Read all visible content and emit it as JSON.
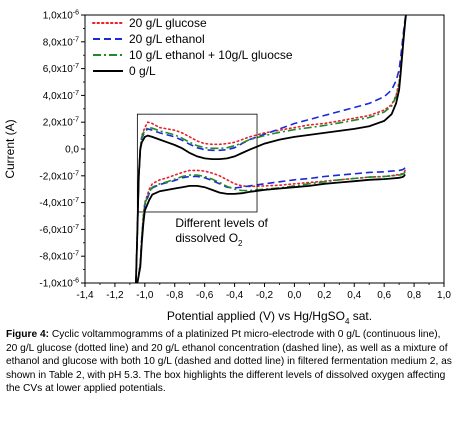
{
  "chart_data": {
    "type": "line",
    "xlabel": "Potential applied (V) vs Hg/HgSO",
    "xlabel_sub": "4",
    "xlabel_suffix": " sat.",
    "ylabel": "Current (A)",
    "xlim": [
      -1.4,
      1.0
    ],
    "ylim": [
      -1e-06,
      1e-06
    ],
    "x_ticks": [
      -1.4,
      -1.2,
      -1.0,
      -0.8,
      -0.6,
      -0.4,
      -0.2,
      0.0,
      0.2,
      0.4,
      0.6,
      0.8,
      1.0
    ],
    "x_tick_labels": [
      "-1,4",
      "-1,2",
      "-1,0",
      "-0,8",
      "-0,6",
      "-0,4",
      "-0,2",
      "0,0",
      "0,2",
      "0,4",
      "0,6",
      "0,8",
      "1,0"
    ],
    "y_ticks": [
      -1e-06,
      -8e-07,
      -6e-07,
      -4e-07,
      -2e-07,
      0.0,
      2e-07,
      4e-07,
      6e-07,
      8e-07,
      1e-06
    ],
    "y_tick_labels": [
      "-1,0x10",
      "-8,0x10",
      "-6,0x10",
      "-4,0x10",
      "-2,0x10",
      "0,0",
      "2,0x10",
      "4,0x10",
      "6,0x10",
      "8,0x10",
      "1,0x10"
    ],
    "y_tick_exponents": [
      "-6",
      "-7",
      "-7",
      "-7",
      "-7",
      "",
      "-7",
      "-7",
      "-7",
      "-7",
      "-6"
    ],
    "grid": false,
    "legend_position": "top-left",
    "series": [
      {
        "name": "20 g/L glucose",
        "color": "#e8202a",
        "dash": "dotted",
        "x": [
          -1.06,
          -1.05,
          -1.04,
          -1.03,
          -1.02,
          -1.0,
          -0.98,
          -0.95,
          -0.9,
          -0.85,
          -0.8,
          -0.75,
          -0.7,
          -0.65,
          -0.6,
          -0.55,
          -0.5,
          -0.45,
          -0.4,
          -0.35,
          -0.3,
          -0.2,
          -0.1,
          0.0,
          0.1,
          0.2,
          0.3,
          0.4,
          0.5,
          0.6,
          0.65,
          0.68,
          0.7,
          0.71,
          0.72,
          0.73,
          0.74,
          0.745,
          null,
          0.74,
          0.73,
          0.72,
          0.7,
          0.65,
          0.6,
          0.5,
          0.4,
          0.3,
          0.2,
          0.1,
          0.0,
          -0.1,
          -0.2,
          -0.3,
          -0.35,
          -0.4,
          -0.45,
          -0.5,
          -0.55,
          -0.6,
          -0.65,
          -0.7,
          -0.75,
          -0.8,
          -0.85,
          -0.9,
          -0.95,
          -0.97,
          -1.0,
          -1.01,
          -1.02,
          -1.03,
          -1.05
        ],
        "y": [
          -1e-06,
          -6e-07,
          -2e-07,
          0.0,
          1e-07,
          1.6e-07,
          2e-07,
          1.9e-07,
          1.6e-07,
          1.5e-07,
          1.4e-07,
          1.2e-07,
          9e-08,
          6e-08,
          4e-08,
          3.5e-08,
          3.5e-08,
          4e-08,
          5e-08,
          7e-08,
          9e-08,
          1.2e-07,
          1.4e-07,
          1.6e-07,
          1.8e-07,
          1.9e-07,
          2.1e-07,
          2.3e-07,
          2.5e-07,
          2.9e-07,
          3.3e-07,
          4e-07,
          5e-07,
          6e-07,
          7.3e-07,
          8.5e-07,
          9.6e-07,
          1e-06,
          null,
          -1.6e-07,
          -1.8e-07,
          -1.85e-07,
          -1.9e-07,
          -2e-07,
          -2.05e-07,
          -2.1e-07,
          -2.2e-07,
          -2.3e-07,
          -2.4e-07,
          -2.5e-07,
          -2.6e-07,
          -2.7e-07,
          -2.75e-07,
          -2.8e-07,
          -2.75e-07,
          -2.6e-07,
          -2.3e-07,
          -2e-07,
          -1.8e-07,
          -1.65e-07,
          -1.6e-07,
          -1.6e-07,
          -1.75e-07,
          -1.95e-07,
          -2.15e-07,
          -2.3e-07,
          -2.6e-07,
          -3e-07,
          -4e-07,
          -5e-07,
          -6.5e-07,
          -8.5e-07,
          -1e-06
        ]
      },
      {
        "name": "20 g/L ethanol",
        "color": "#1a2ad8",
        "dash": "dashed",
        "x": [
          -1.06,
          -1.05,
          -1.04,
          -1.03,
          -1.02,
          -1.0,
          -0.98,
          -0.95,
          -0.9,
          -0.85,
          -0.8,
          -0.75,
          -0.7,
          -0.65,
          -0.6,
          -0.55,
          -0.5,
          -0.45,
          -0.4,
          -0.35,
          -0.3,
          -0.2,
          -0.1,
          0.0,
          0.1,
          0.2,
          0.3,
          0.4,
          0.5,
          0.6,
          0.65,
          0.68,
          0.7,
          0.71,
          0.72,
          0.73,
          0.74,
          0.745,
          null,
          0.74,
          0.73,
          0.72,
          0.7,
          0.65,
          0.6,
          0.5,
          0.4,
          0.3,
          0.2,
          0.1,
          0.0,
          -0.1,
          -0.2,
          -0.3,
          -0.35,
          -0.4,
          -0.45,
          -0.5,
          -0.55,
          -0.6,
          -0.65,
          -0.7,
          -0.75,
          -0.8,
          -0.85,
          -0.9,
          -0.95,
          -0.97,
          -1.0,
          -1.01,
          -1.02,
          -1.03,
          -1.05
        ],
        "y": [
          -1e-06,
          -6e-07,
          -2e-07,
          0.0,
          8e-08,
          1.3e-07,
          1.5e-07,
          1.4e-07,
          1.2e-07,
          1.05e-07,
          9e-08,
          6.5e-08,
          3.5e-08,
          1e-08,
          -5e-09,
          -1e-08,
          -1e-08,
          -5e-09,
          1e-08,
          4e-08,
          7e-08,
          1.1e-07,
          1.5e-07,
          1.9e-07,
          2.2e-07,
          2.5e-07,
          2.8e-07,
          3.1e-07,
          3.4e-07,
          3.9e-07,
          4.4e-07,
          5.1e-07,
          5.9e-07,
          6.8e-07,
          7.8e-07,
          8.8e-07,
          9.7e-07,
          1e-06,
          null,
          -1.4e-07,
          -1.5e-07,
          -1.55e-07,
          -1.6e-07,
          -1.65e-07,
          -1.7e-07,
          -1.75e-07,
          -1.85e-07,
          -1.95e-07,
          -2.05e-07,
          -2.2e-07,
          -2.3e-07,
          -2.45e-07,
          -2.6e-07,
          -2.75e-07,
          -2.85e-07,
          -2.9e-07,
          -2.85e-07,
          -2.6e-07,
          -2.35e-07,
          -2.15e-07,
          -2.05e-07,
          -2.05e-07,
          -2.15e-07,
          -2.35e-07,
          -2.5e-07,
          -2.65e-07,
          -2.9e-07,
          -3.3e-07,
          -4.2e-07,
          -5.2e-07,
          -6.6e-07,
          -8.6e-07,
          -1e-06
        ]
      },
      {
        "name": "10 g/L ethanol + 10g/L gluocse",
        "color": "#1f8a2a",
        "dash": "dashdot",
        "x": [
          -1.06,
          -1.05,
          -1.04,
          -1.03,
          -1.02,
          -1.0,
          -0.98,
          -0.95,
          -0.9,
          -0.85,
          -0.8,
          -0.75,
          -0.7,
          -0.65,
          -0.6,
          -0.55,
          -0.5,
          -0.45,
          -0.4,
          -0.35,
          -0.3,
          -0.2,
          -0.1,
          0.0,
          0.1,
          0.2,
          0.3,
          0.4,
          0.5,
          0.6,
          0.65,
          0.68,
          0.7,
          0.71,
          0.72,
          0.73,
          0.74,
          0.745,
          null,
          0.74,
          0.73,
          0.72,
          0.7,
          0.65,
          0.6,
          0.5,
          0.4,
          0.3,
          0.2,
          0.1,
          0.0,
          -0.1,
          -0.2,
          -0.3,
          -0.35,
          -0.4,
          -0.45,
          -0.5,
          -0.55,
          -0.6,
          -0.65,
          -0.7,
          -0.75,
          -0.8,
          -0.85,
          -0.9,
          -0.95,
          -0.97,
          -1.0,
          -1.01,
          -1.02,
          -1.03,
          -1.05
        ],
        "y": [
          -1e-06,
          -6e-07,
          -2e-07,
          0.0,
          9e-08,
          1.4e-07,
          1.6e-07,
          1.55e-07,
          1.35e-07,
          1.2e-07,
          1.05e-07,
          8e-08,
          5e-08,
          2.5e-08,
          1e-08,
          5e-09,
          5e-09,
          1e-08,
          2.5e-08,
          4.5e-08,
          7e-08,
          1e-07,
          1.25e-07,
          1.45e-07,
          1.6e-07,
          1.75e-07,
          1.95e-07,
          2.15e-07,
          2.35e-07,
          2.75e-07,
          3.2e-07,
          3.9e-07,
          4.8e-07,
          5.8e-07,
          7e-07,
          8.3e-07,
          9.5e-07,
          1e-06,
          null,
          -1.7e-07,
          -1.85e-07,
          -1.9e-07,
          -1.95e-07,
          -2e-07,
          -2.05e-07,
          -2.1e-07,
          -2.2e-07,
          -2.3e-07,
          -2.45e-07,
          -2.6e-07,
          -2.75e-07,
          -2.9e-07,
          -3e-07,
          -3.1e-07,
          -3.1e-07,
          -3e-07,
          -2.8e-07,
          -2.5e-07,
          -2.25e-07,
          -2.05e-07,
          -1.95e-07,
          -1.95e-07,
          -2.05e-07,
          -2.25e-07,
          -2.45e-07,
          -2.6e-07,
          -2.85e-07,
          -3.2e-07,
          -4.1e-07,
          -5.1e-07,
          -6.6e-07,
          -8.6e-07,
          -1e-06
        ]
      },
      {
        "name": "0 g/L",
        "color": "#000000",
        "dash": "solid",
        "x": [
          -1.06,
          -1.05,
          -1.04,
          -1.03,
          -1.02,
          -1.0,
          -0.98,
          -0.95,
          -0.9,
          -0.85,
          -0.8,
          -0.75,
          -0.7,
          -0.65,
          -0.6,
          -0.55,
          -0.5,
          -0.45,
          -0.4,
          -0.35,
          -0.3,
          -0.2,
          -0.1,
          0.0,
          0.1,
          0.2,
          0.3,
          0.4,
          0.5,
          0.6,
          0.65,
          0.68,
          0.7,
          0.71,
          0.72,
          0.73,
          0.74,
          0.745,
          null,
          0.74,
          0.73,
          0.72,
          0.7,
          0.65,
          0.6,
          0.5,
          0.4,
          0.3,
          0.2,
          0.1,
          0.0,
          -0.1,
          -0.2,
          -0.3,
          -0.35,
          -0.4,
          -0.45,
          -0.5,
          -0.55,
          -0.6,
          -0.65,
          -0.7,
          -0.75,
          -0.8,
          -0.85,
          -0.9,
          -0.95,
          -0.97,
          -1.0,
          -1.01,
          -1.02,
          -1.03,
          -1.05
        ],
        "y": [
          -1e-06,
          -6e-07,
          -2e-07,
          0.0,
          5e-08,
          9e-08,
          1e-07,
          9e-08,
          7e-08,
          5e-08,
          3e-08,
          5e-09,
          -3e-08,
          -5.5e-08,
          -7e-08,
          -7.5e-08,
          -7.5e-08,
          -7e-08,
          -5.5e-08,
          -3e-08,
          -5e-09,
          4e-08,
          7e-08,
          9e-08,
          1.05e-07,
          1.2e-07,
          1.35e-07,
          1.5e-07,
          1.7e-07,
          2.1e-07,
          2.6e-07,
          3.4e-07,
          4.4e-07,
          5.6e-07,
          6.9e-07,
          8.2e-07,
          9.4e-07,
          1e-06,
          null,
          -1.9e-07,
          -2.05e-07,
          -2.1e-07,
          -2.15e-07,
          -2.2e-07,
          -2.25e-07,
          -2.3e-07,
          -2.4e-07,
          -2.5e-07,
          -2.6e-07,
          -2.75e-07,
          -2.85e-07,
          -2.95e-07,
          -3.05e-07,
          -3.2e-07,
          -3.3e-07,
          -3.35e-07,
          -3.35e-07,
          -3.25e-07,
          -3.05e-07,
          -2.85e-07,
          -2.75e-07,
          -2.75e-07,
          -2.85e-07,
          -2.95e-07,
          -3.05e-07,
          -3.15e-07,
          -3.4e-07,
          -3.8e-07,
          -4.6e-07,
          -5.6e-07,
          -7e-07,
          -8.8e-07,
          -1e-06
        ]
      }
    ],
    "highlight_box": {
      "x0": -1.05,
      "x1": -0.25,
      "y0": -4.7e-07,
      "y1": 2.6e-07
    },
    "annotation": {
      "text": "Different levels of",
      "text2": "dissolved O",
      "sub": "2"
    }
  },
  "caption": {
    "label": "Figure 4:",
    "text": "Cyclic voltammogramms of a platinized Pt micro-electrode with 0 g/L (continuous line), 20 g/L glucose (dotted line) and 20 g/L ethanol concentration (dashed line), as well as a mixture of ethanol and glucose with both 10 g/L (dashed and dotted line) in filtered fermentation medium 2, as shown in Table 2, with pH 5.3. The box highlights the different levels of dissolved oxygen affecting the CVs at lower applied potentials."
  }
}
